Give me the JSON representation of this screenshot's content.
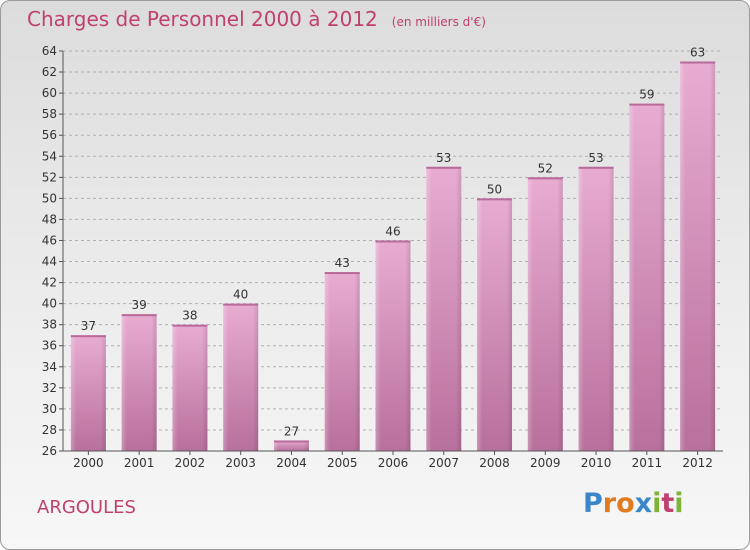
{
  "header": {
    "title": "Charges de Personnel 2000 à 2012",
    "unit": "(en milliers d'€)"
  },
  "footer": {
    "commune": "ARGOULES",
    "logo_letters": [
      "P",
      "r",
      "o",
      "x",
      "i",
      "t",
      "i"
    ],
    "logo_colors": [
      "#3a86c8",
      "#e07b1f",
      "#e07b1f",
      "#3a86c8",
      "#7fb33a",
      "#c04070",
      "#7fb33a"
    ]
  },
  "chart_data": {
    "type": "bar",
    "categories": [
      "2000",
      "2001",
      "2002",
      "2003",
      "2004",
      "2005",
      "2006",
      "2007",
      "2008",
      "2009",
      "2010",
      "2011",
      "2012"
    ],
    "values": [
      37,
      39,
      38,
      40,
      27,
      43,
      46,
      53,
      50,
      52,
      53,
      59,
      63
    ],
    "title": "Charges de Personnel 2000 à 2012",
    "ylim": [
      26,
      64
    ],
    "yticks": [
      26,
      28,
      30,
      32,
      34,
      36,
      38,
      40,
      42,
      44,
      46,
      48,
      50,
      52,
      54,
      56,
      58,
      60,
      62,
      64
    ],
    "grid": true,
    "bar_color": "#d88cb8"
  }
}
